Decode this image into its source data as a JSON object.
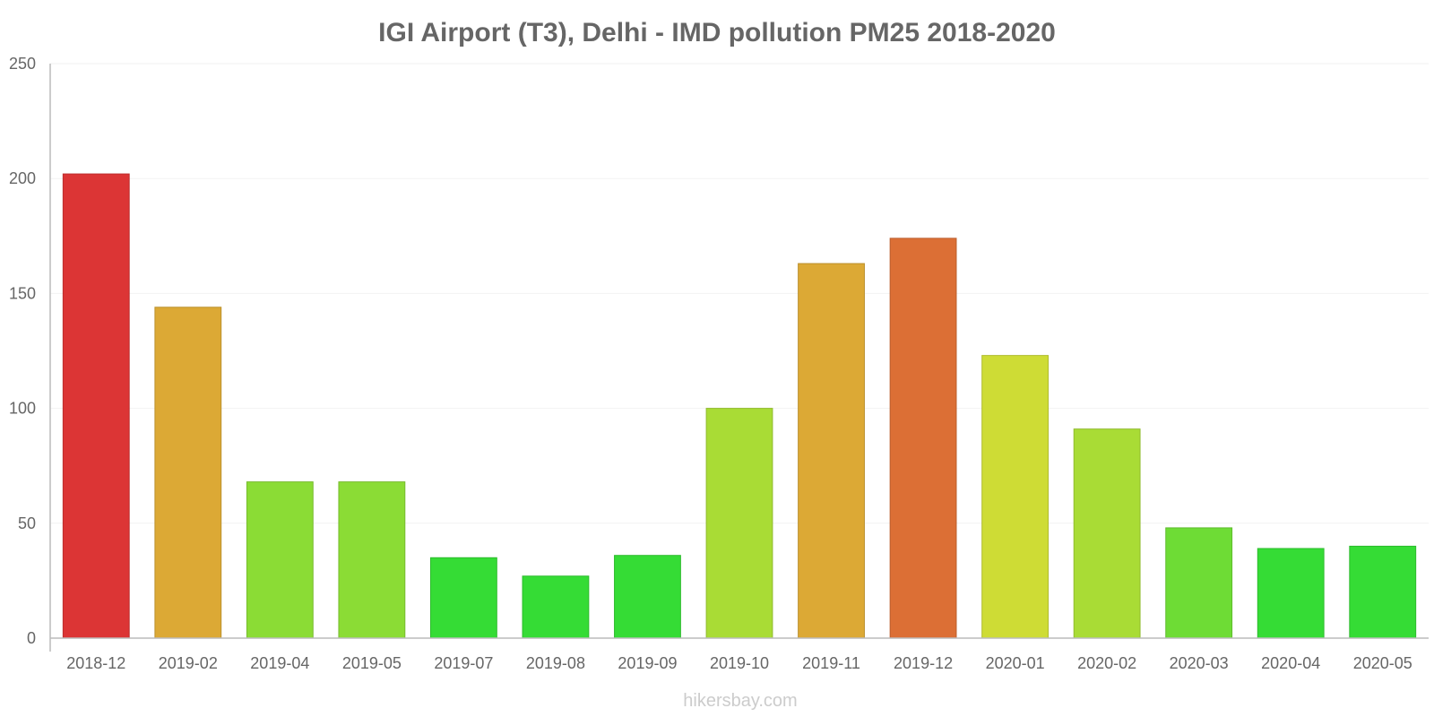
{
  "chart_data": {
    "type": "bar",
    "title": "IGI Airport (T3), Delhi - IMD pollution PM25 2018-2020",
    "xlabel": "",
    "ylabel": "",
    "ylim": [
      0,
      250
    ],
    "yticks": [
      0,
      50,
      100,
      150,
      200,
      250
    ],
    "grid": true,
    "categories": [
      "2018-12",
      "2019-02",
      "2019-04",
      "2019-05",
      "2019-07",
      "2019-08",
      "2019-09",
      "2019-10",
      "2019-11",
      "2019-12",
      "2020-01",
      "2020-02",
      "2020-03",
      "2020-04",
      "2020-05"
    ],
    "values": [
      202,
      144,
      68,
      68,
      35,
      27,
      36,
      100,
      163,
      174,
      123,
      91,
      48,
      39,
      40
    ],
    "colors": [
      "#dc3535",
      "#dca935",
      "#8bdc35",
      "#8bdc35",
      "#35dc35",
      "#35dc35",
      "#35dc35",
      "#a9dc35",
      "#dca935",
      "#dc6f35",
      "#cedc35",
      "#a9dc35",
      "#6edc35",
      "#35dc35",
      "#35dc35"
    ],
    "watermark": "hikersbay.com"
  }
}
